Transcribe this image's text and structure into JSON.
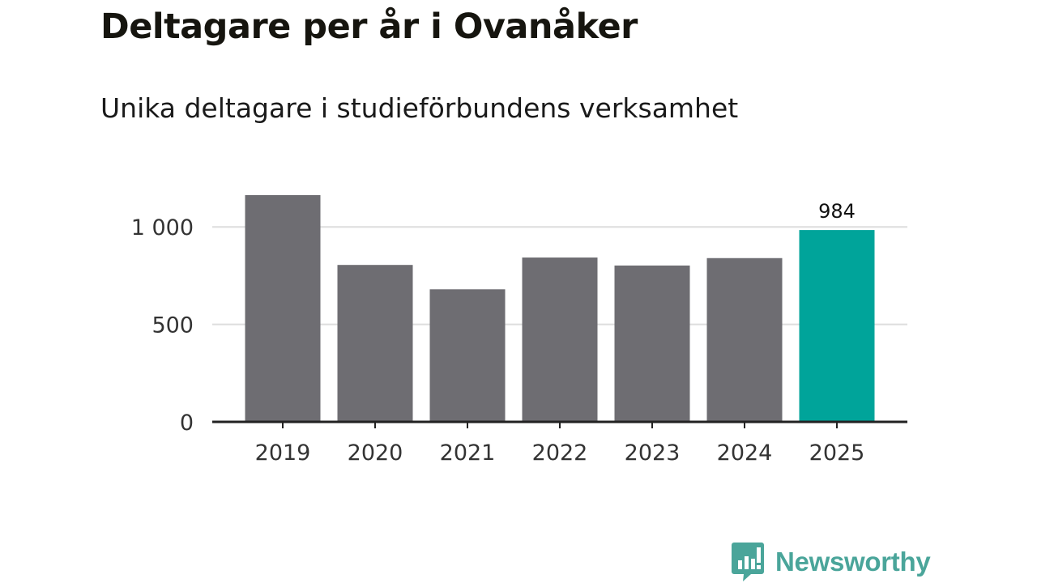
{
  "title": "Deltagare per år i Ovanåker",
  "subtitle": "Unika deltagare i studieförbundens verksamhet",
  "brand": {
    "name": "Newsworthy",
    "icon": "newsworthy-logo-icon",
    "color": "#4aa59a"
  },
  "colors": {
    "bar_default": "#6e6d72",
    "bar_highlight": "#00a49a",
    "grid": "#dddddd",
    "axis": "#222222"
  },
  "chart_data": {
    "type": "bar",
    "title": "Deltagare per år i Ovanåker",
    "subtitle": "Unika deltagare i studieförbundens verksamhet",
    "categories": [
      "2019",
      "2020",
      "2021",
      "2022",
      "2023",
      "2024",
      "2025"
    ],
    "values": [
      1163,
      805,
      680,
      843,
      802,
      840,
      984
    ],
    "highlight_index": 6,
    "data_labels": [
      {
        "category": "2025",
        "value": 984,
        "text": "984"
      }
    ],
    "ylim": [
      0,
      1163
    ],
    "yticks": [
      {
        "value": 0,
        "label": "0"
      },
      {
        "value": 500,
        "label": "500"
      },
      {
        "value": 1000,
        "label": "1 000"
      }
    ],
    "xlabel": "",
    "ylabel": "",
    "grid": true
  }
}
